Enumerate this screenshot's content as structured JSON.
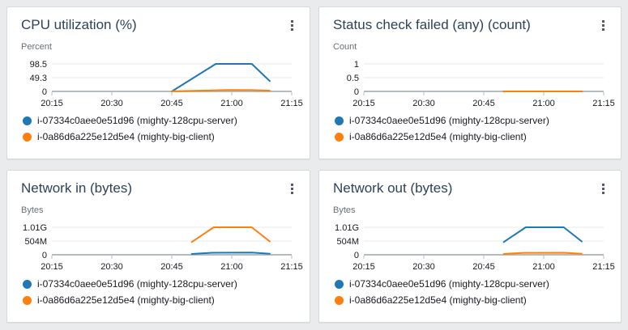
{
  "page": {
    "background_color": "#e9ebed",
    "widget_menu_icon": "kebab-menu-icon"
  },
  "panel_style": {
    "background_color": "#ffffff",
    "border_color": "#d5dbdb",
    "title_color": "#2e4257",
    "grid_line_color": "#e8eaeb",
    "axis_line_color": "#b4bcc0",
    "tick_text_color": "#16191f",
    "unit_text_color": "#687078",
    "menu_icon_color": "#545b64"
  },
  "chart_data": [
    {
      "type": "line",
      "title": "CPU utilization (%)",
      "ylabel": "Percent",
      "grid": "horizontal",
      "legend_position": "bottom",
      "x_tick_labels": [
        "20:15",
        "20:30",
        "20:45",
        "21:00",
        "21:15"
      ],
      "x_range_minutes": [
        0,
        60
      ],
      "x_axis_note": "minutes after 20:15",
      "y_ticks": [
        {
          "label": "98.5",
          "value": 98.5
        },
        {
          "label": "49.3",
          "value": 49.3
        },
        {
          "label": "0",
          "value": 0
        }
      ],
      "series": [
        {
          "name": "i-07334c0aee0e51d96 (mighty-128cpu-server)",
          "color": "#1f77b4",
          "points": [
            [
              30,
              0
            ],
            [
              41,
              98.5
            ],
            [
              50,
              98.5
            ],
            [
              54.5,
              37
            ]
          ]
        },
        {
          "name": "i-0a86d6a225e12d5e4 (mighty-big-client)",
          "color": "#ff7f0e",
          "points": [
            [
              30,
              0.3
            ],
            [
              38,
              3
            ],
            [
              44,
              4.8
            ],
            [
              50,
              4.5
            ],
            [
              54.5,
              2.5
            ]
          ]
        }
      ]
    },
    {
      "type": "line",
      "title": "Status check failed (any) (count)",
      "ylabel": "Count",
      "grid": "horizontal",
      "legend_position": "bottom",
      "x_tick_labels": [
        "20:15",
        "20:30",
        "20:45",
        "21:00",
        "21:15"
      ],
      "x_range_minutes": [
        0,
        60
      ],
      "x_axis_note": "minutes after 20:15",
      "y_ticks": [
        {
          "label": "1",
          "value": 1
        },
        {
          "label": "0.5",
          "value": 0.5
        },
        {
          "label": "0",
          "value": 0
        }
      ],
      "series": [
        {
          "name": "i-07334c0aee0e51d96 (mighty-128cpu-server)",
          "color": "#1f77b4",
          "points": [
            [
              35,
              0
            ],
            [
              54.5,
              0
            ]
          ]
        },
        {
          "name": "i-0a86d6a225e12d5e4 (mighty-big-client)",
          "color": "#ff7f0e",
          "points": [
            [
              35,
              0
            ],
            [
              54.5,
              0
            ]
          ]
        }
      ]
    },
    {
      "type": "line",
      "title": "Network in (bytes)",
      "ylabel": "Bytes",
      "grid": "horizontal",
      "legend_position": "bottom",
      "x_tick_labels": [
        "20:15",
        "20:30",
        "20:45",
        "21:00",
        "21:15"
      ],
      "x_range_minutes": [
        0,
        60
      ],
      "x_axis_note": "minutes after 20:15",
      "y_ticks": [
        {
          "label": "1.01G",
          "value": 1010000000
        },
        {
          "label": "504M",
          "value": 504000000
        },
        {
          "label": "0",
          "value": 0
        }
      ],
      "series": [
        {
          "name": "i-07334c0aee0e51d96 (mighty-128cpu-server)",
          "color": "#1f77b4",
          "points": [
            [
              35,
              30000000
            ],
            [
              40,
              75000000
            ],
            [
              50,
              80000000
            ],
            [
              54.5,
              40000000
            ]
          ]
        },
        {
          "name": "i-0a86d6a225e12d5e4 (mighty-big-client)",
          "color": "#ff7f0e",
          "points": [
            [
              35,
              470000000
            ],
            [
              40.5,
              1010000000
            ],
            [
              50,
              1010000000
            ],
            [
              54.5,
              490000000
            ]
          ]
        }
      ]
    },
    {
      "type": "line",
      "title": "Network out (bytes)",
      "ylabel": "Bytes",
      "grid": "horizontal",
      "legend_position": "bottom",
      "x_tick_labels": [
        "20:15",
        "20:30",
        "20:45",
        "21:00",
        "21:15"
      ],
      "x_range_minutes": [
        0,
        60
      ],
      "x_axis_note": "minutes after 20:15",
      "y_ticks": [
        {
          "label": "1.01G",
          "value": 1010000000
        },
        {
          "label": "504M",
          "value": 504000000
        },
        {
          "label": "0",
          "value": 0
        }
      ],
      "series": [
        {
          "name": "i-07334c0aee0e51d96 (mighty-128cpu-server)",
          "color": "#1f77b4",
          "points": [
            [
              35,
              470000000
            ],
            [
              40.5,
              1010000000
            ],
            [
              50,
              1010000000
            ],
            [
              54.5,
              490000000
            ]
          ]
        },
        {
          "name": "i-0a86d6a225e12d5e4 (mighty-big-client)",
          "color": "#ff7f0e",
          "points": [
            [
              35,
              30000000
            ],
            [
              40,
              70000000
            ],
            [
              50,
              75000000
            ],
            [
              54.5,
              35000000
            ]
          ]
        }
      ]
    }
  ]
}
